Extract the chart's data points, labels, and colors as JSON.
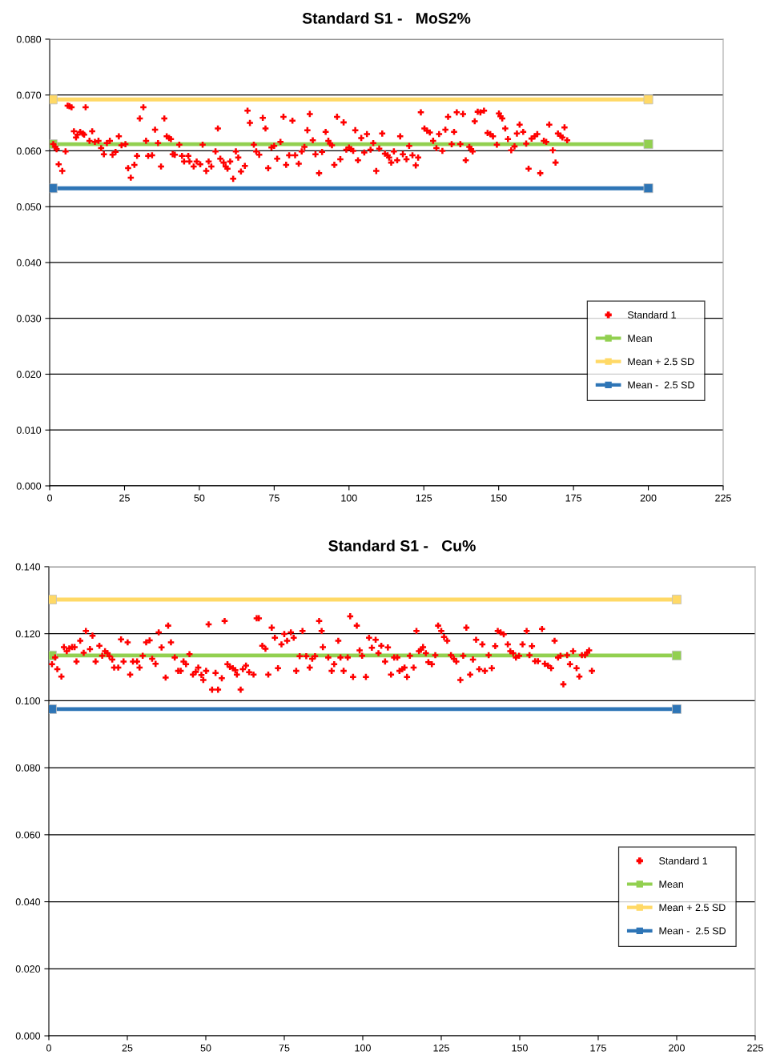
{
  "chart_data": [
    {
      "type": "scatter",
      "title": "Standard S1 -   MoS2%",
      "xlim": [
        0,
        225
      ],
      "xticks": [
        0,
        25,
        50,
        75,
        100,
        125,
        150,
        175,
        200,
        225
      ],
      "ylim": [
        0,
        0.08
      ],
      "yticks": [
        {
          "value": 0,
          "label": "0.000"
        },
        {
          "value": 0.01,
          "label": "0.010"
        },
        {
          "value": 0.02,
          "label": "0.020"
        },
        {
          "value": 0.03,
          "label": "0.030"
        },
        {
          "value": 0.04,
          "label": "0.040"
        },
        {
          "value": 0.05,
          "label": "0.050"
        },
        {
          "value": 0.06,
          "label": "0.060"
        },
        {
          "value": 0.07,
          "label": "0.070"
        },
        {
          "value": 0.08,
          "label": "0.080"
        }
      ],
      "grid": "y",
      "legend": "lower right",
      "series": [
        {
          "name": "Standard 1",
          "type": "scatter",
          "marker": "cross",
          "color": "#ff0000",
          "x": [
            1.2,
            1.9,
            2.3,
            3.0,
            4.2,
            5.3,
            6.0,
            6.6,
            7.3,
            8.1,
            8.8,
            9.3,
            10.2,
            11.1,
            11.5,
            12.0,
            13.3,
            14.2,
            15.1,
            16.3,
            17.2,
            18.1,
            19.1,
            20.1,
            21.0,
            22.0,
            23.1,
            24.0,
            25.3,
            26.2,
            27.1,
            28.3,
            29.2,
            30.1,
            31.3,
            32.2,
            32.9,
            34.2,
            35.2,
            36.2,
            37.2,
            38.3,
            39.1,
            39.9,
            40.5,
            41.1,
            41.8,
            43.3,
            44.2,
            44.9,
            46.3,
            46.7,
            48.1,
            49.1,
            50.3,
            51.1,
            52.3,
            53.1,
            54.0,
            55.4,
            56.2,
            57.0,
            58.1,
            58.8,
            59.4,
            60.3,
            61.3,
            62.2,
            63.0,
            63.9,
            65.2,
            66.1,
            66.9,
            68.2,
            69.0,
            70.0,
            71.2,
            72.1,
            73.0,
            74.1,
            75.0,
            76.0,
            77.1,
            78.1,
            79.0,
            80.0,
            81.1,
            82.0,
            83.2,
            84.2,
            85.1,
            86.1,
            86.9,
            87.9,
            88.8,
            90.0,
            91.0,
            92.2,
            93.1,
            93.7,
            94.3,
            95.1,
            96.0,
            97.1,
            98.2,
            99.1,
            100.0,
            100.7,
            101.4,
            102.1,
            103.0,
            104.1,
            105.1,
            106.0,
            107.2,
            108.1,
            109.1,
            110.1,
            111.1,
            112.0,
            112.9,
            113.4,
            114.1,
            115.0,
            116.1,
            117.1,
            118.0,
            119.2,
            120.1,
            121.2,
            122.3,
            123.1,
            124.0,
            125.2,
            126.1,
            127.0,
            128.1,
            129.2,
            130.1,
            131.2,
            132.2,
            133.1,
            134.3,
            135.1,
            136.0,
            137.2,
            138.1,
            139.0,
            140.2,
            140.8,
            141.3,
            142.0,
            143.0,
            143.9,
            145.1,
            146.3,
            147.2,
            148.1,
            149.4,
            150.1,
            150.6,
            151.2,
            152.2,
            153.1,
            154.2,
            155.3,
            156.1,
            157.0,
            158.2,
            159.2,
            160.0,
            161.0,
            162.0,
            162.9,
            163.9,
            165.1,
            165.9,
            166.9,
            168.1,
            169.0,
            169.8,
            170.7,
            171.3,
            172.0,
            172.9
          ],
          "values": [
            0.0612,
            0.0607,
            0.0603,
            0.0576,
            0.0564,
            0.0599,
            0.0681,
            0.068,
            0.0678,
            0.0635,
            0.0624,
            0.0629,
            0.0634,
            0.0631,
            0.0629,
            0.0678,
            0.0618,
            0.0635,
            0.0616,
            0.0618,
            0.0605,
            0.0594,
            0.0614,
            0.0618,
            0.0593,
            0.0598,
            0.0626,
            0.061,
            0.0612,
            0.0569,
            0.0552,
            0.0575,
            0.0591,
            0.0658,
            0.0678,
            0.0618,
            0.0591,
            0.0592,
            0.0638,
            0.0614,
            0.0572,
            0.0658,
            0.0626,
            0.0623,
            0.0621,
            0.0594,
            0.0593,
            0.0611,
            0.0591,
            0.0581,
            0.0591,
            0.0581,
            0.0572,
            0.0581,
            0.0576,
            0.0611,
            0.0564,
            0.0581,
            0.0572,
            0.0599,
            0.064,
            0.0586,
            0.0579,
            0.0572,
            0.0568,
            0.0581,
            0.055,
            0.0599,
            0.0588,
            0.0563,
            0.0573,
            0.0672,
            0.065,
            0.0611,
            0.0599,
            0.0593,
            0.0659,
            0.064,
            0.0569,
            0.0606,
            0.0609,
            0.0586,
            0.0616,
            0.0661,
            0.0575,
            0.0592,
            0.0654,
            0.0592,
            0.0577,
            0.0599,
            0.0607,
            0.0637,
            0.0666,
            0.0619,
            0.0594,
            0.056,
            0.0598,
            0.0634,
            0.0618,
            0.0613,
            0.061,
            0.0575,
            0.0661,
            0.0585,
            0.0651,
            0.0602,
            0.0606,
            0.0603,
            0.06,
            0.0637,
            0.0583,
            0.0623,
            0.0597,
            0.063,
            0.0602,
            0.0614,
            0.0564,
            0.0604,
            0.0631,
            0.0595,
            0.0592,
            0.0588,
            0.0579,
            0.0599,
            0.0583,
            0.0626,
            0.0594,
            0.0585,
            0.0609,
            0.0592,
            0.0574,
            0.0588,
            0.0669,
            0.064,
            0.0636,
            0.0633,
            0.0618,
            0.0605,
            0.063,
            0.06,
            0.0638,
            0.0661,
            0.0612,
            0.0634,
            0.0669,
            0.0612,
            0.0666,
            0.0583,
            0.0607,
            0.0603,
            0.0599,
            0.0653,
            0.067,
            0.0669,
            0.0672,
            0.0632,
            0.063,
            0.0626,
            0.0611,
            0.0667,
            0.0662,
            0.0658,
            0.064,
            0.0621,
            0.0601,
            0.0608,
            0.0631,
            0.0647,
            0.0634,
            0.0613,
            0.0568,
            0.0622,
            0.0626,
            0.063,
            0.056,
            0.0618,
            0.0616,
            0.0647,
            0.0601,
            0.0579,
            0.0631,
            0.0627,
            0.0624,
            0.0642,
            0.0619
          ]
        },
        {
          "name": "Mean",
          "type": "line",
          "marker": "square",
          "color": "#92d050",
          "x": [
            1,
            200
          ],
          "values": [
            0.0612,
            0.0612
          ]
        },
        {
          "name": "Mean + 2.5 SD",
          "type": "line",
          "marker": "square",
          "color": "#ffd966",
          "x": [
            1,
            200
          ],
          "values": [
            0.0692,
            0.0692
          ]
        },
        {
          "name": "Mean -  2.5 SD",
          "type": "line",
          "marker": "square",
          "color": "#2e75b6",
          "x": [
            1,
            200
          ],
          "values": [
            0.0533,
            0.0533
          ]
        }
      ]
    },
    {
      "type": "scatter",
      "title": "Standard S1 -   Cu%",
      "xlim": [
        0,
        225
      ],
      "xticks": [
        0,
        25,
        50,
        75,
        100,
        125,
        150,
        175,
        200,
        225
      ],
      "ylim": [
        0,
        0.14
      ],
      "yticks": [
        {
          "value": 0,
          "label": "0.000"
        },
        {
          "value": 0.02,
          "label": "0.020"
        },
        {
          "value": 0.04,
          "label": "0.040"
        },
        {
          "value": 0.06,
          "label": "0.060"
        },
        {
          "value": 0.08,
          "label": "0.080"
        },
        {
          "value": 0.1,
          "label": "0.100"
        },
        {
          "value": 0.12,
          "label": "0.120"
        },
        {
          "value": 0.14,
          "label": "0.140"
        }
      ],
      "grid": "y",
      "legend": "lower right",
      "series": [
        {
          "name": "Standard 1",
          "type": "scatter",
          "marker": "cross",
          "color": "#ff0000",
          "x": [
            1.0,
            2.0,
            2.7,
            4.0,
            4.8,
            5.7,
            6.5,
            7.4,
            8.2,
            8.8,
            10.0,
            11.1,
            11.8,
            13.1,
            13.9,
            14.9,
            16.1,
            17.0,
            17.9,
            18.7,
            19.3,
            20.2,
            20.8,
            22.1,
            23.0,
            23.8,
            25.1,
            25.9,
            26.8,
            28.1,
            28.9,
            29.9,
            31.0,
            32.1,
            32.9,
            34.0,
            35.0,
            35.9,
            37.2,
            38.0,
            38.9,
            40.1,
            41.2,
            42.0,
            42.9,
            43.7,
            44.8,
            45.9,
            46.8,
            47.6,
            48.6,
            49.2,
            50.1,
            50.9,
            52.0,
            53.1,
            53.9,
            55.1,
            56.0,
            56.9,
            57.7,
            58.6,
            59.4,
            59.9,
            61.1,
            61.8,
            62.8,
            63.8,
            65.2,
            66.2,
            66.9,
            68.0,
            69.0,
            69.9,
            71.0,
            72.0,
            73.0,
            74.1,
            75.0,
            75.9,
            77.1,
            78.0,
            78.8,
            79.9,
            80.8,
            82.0,
            83.1,
            83.9,
            84.8,
            86.1,
            86.9,
            87.3,
            89.0,
            90.1,
            90.9,
            92.2,
            92.9,
            93.9,
            95.2,
            96.0,
            96.9,
            98.1,
            99.0,
            99.8,
            101.0,
            102.0,
            102.9,
            104.1,
            105.0,
            105.9,
            107.1,
            108.0,
            109.0,
            110.0,
            111.0,
            111.7,
            112.6,
            113.3,
            114.1,
            115.0,
            116.2,
            117.1,
            117.9,
            118.5,
            119.2,
            120.1,
            120.9,
            122.0,
            123.1,
            124.0,
            125.0,
            125.9,
            126.9,
            128.1,
            129.0,
            129.8,
            131.1,
            132.0,
            133.0,
            134.2,
            135.1,
            136.1,
            137.1,
            138.1,
            138.9,
            140.1,
            141.1,
            142.2,
            143.0,
            143.9,
            144.9,
            146.2,
            147.0,
            147.9,
            148.8,
            149.8,
            150.9,
            152.2,
            153.1,
            153.9,
            154.9,
            155.8,
            157.1,
            158.0,
            159.0,
            160.0,
            161.1,
            162.2,
            163.0,
            163.9,
            165.1,
            166.0,
            167.0,
            168.1,
            169.0,
            169.8,
            170.8,
            171.5,
            172.1,
            173.0
          ],
          "values": [
            0.1109,
            0.1129,
            0.1094,
            0.1072,
            0.116,
            0.1148,
            0.1156,
            0.116,
            0.116,
            0.1117,
            0.1179,
            0.1143,
            0.1208,
            0.1154,
            0.1194,
            0.1117,
            0.1164,
            0.1134,
            0.1148,
            0.1142,
            0.1133,
            0.1123,
            0.1099,
            0.1099,
            0.1183,
            0.1117,
            0.1174,
            0.1078,
            0.1117,
            0.1117,
            0.1099,
            0.1134,
            0.1174,
            0.118,
            0.1125,
            0.111,
            0.1204,
            0.1159,
            0.1069,
            0.1224,
            0.1174,
            0.1129,
            0.1089,
            0.1089,
            0.1117,
            0.1109,
            0.1139,
            0.1078,
            0.1086,
            0.1099,
            0.1077,
            0.1062,
            0.1089,
            0.1228,
            0.1033,
            0.1083,
            0.1033,
            0.1067,
            0.1238,
            0.1109,
            0.1101,
            0.1097,
            0.1091,
            0.1078,
            0.1033,
            0.1094,
            0.1105,
            0.1085,
            0.1078,
            0.1246,
            0.1246,
            0.1164,
            0.1155,
            0.1078,
            0.1218,
            0.1188,
            0.1097,
            0.1168,
            0.1199,
            0.1179,
            0.1204,
            0.1188,
            0.1089,
            0.1133,
            0.1208,
            0.1133,
            0.1099,
            0.1125,
            0.1133,
            0.1238,
            0.1208,
            0.116,
            0.1129,
            0.1089,
            0.1109,
            0.1179,
            0.1129,
            0.1089,
            0.1129,
            0.1252,
            0.1071,
            0.1224,
            0.115,
            0.1134,
            0.1071,
            0.1188,
            0.1158,
            0.1182,
            0.1142,
            0.1164,
            0.1117,
            0.1159,
            0.1078,
            0.1129,
            0.1129,
            0.1089,
            0.1094,
            0.1099,
            0.1071,
            0.1134,
            0.1099,
            0.1208,
            0.1148,
            0.1152,
            0.116,
            0.1142,
            0.1115,
            0.1109,
            0.1136,
            0.1224,
            0.1208,
            0.119,
            0.1179,
            0.1136,
            0.1125,
            0.1117,
            0.1062,
            0.1134,
            0.1218,
            0.1078,
            0.1123,
            0.1182,
            0.1094,
            0.1168,
            0.1089,
            0.1136,
            0.1097,
            0.1163,
            0.1208,
            0.1204,
            0.1198,
            0.1168,
            0.1148,
            0.1142,
            0.1129,
            0.1134,
            0.1168,
            0.1208,
            0.1136,
            0.1163,
            0.1118,
            0.1118,
            0.1214,
            0.111,
            0.1105,
            0.1097,
            0.1179,
            0.1129,
            0.1134,
            0.1049,
            0.1136,
            0.1109,
            0.1148,
            0.1097,
            0.1072,
            0.1136,
            0.1136,
            0.1144,
            0.115,
            0.1089
          ]
        },
        {
          "name": "Mean",
          "type": "line",
          "marker": "square",
          "color": "#92d050",
          "x": [
            1,
            200
          ],
          "values": [
            0.1135,
            0.1135
          ]
        },
        {
          "name": "Mean + 2.5 SD",
          "type": "line",
          "marker": "square",
          "color": "#ffd966",
          "x": [
            1,
            200
          ],
          "values": [
            0.1302,
            0.1302
          ]
        },
        {
          "name": "Mean -  2.5 SD",
          "type": "line",
          "marker": "square",
          "color": "#2e75b6",
          "x": [
            1,
            200
          ],
          "values": [
            0.0975,
            0.0975
          ]
        }
      ]
    }
  ]
}
